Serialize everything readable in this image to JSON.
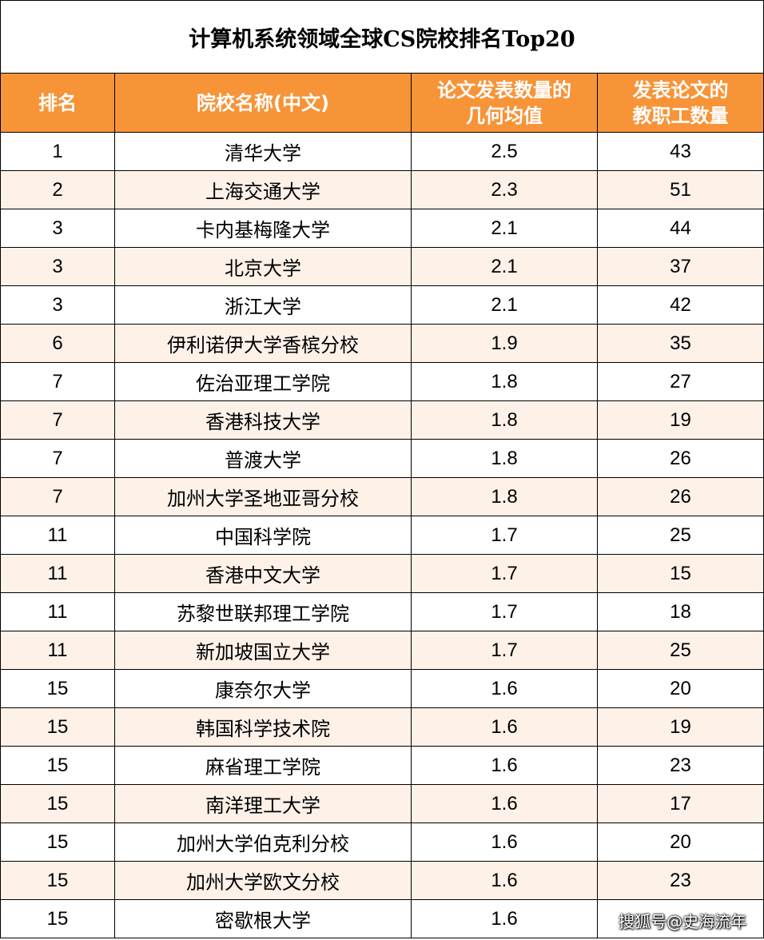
{
  "title": "计算机系统领域全球CS院校排名Top20",
  "headers": [
    "排名",
    "院校名称(中文)",
    "论文发表数量的\n几何均值",
    "发表论文的\n教职工数量"
  ],
  "rows": [
    {
      "rank": "1",
      "name": "清华大学",
      "mean": "2.5",
      "faculty": "43"
    },
    {
      "rank": "2",
      "name": "上海交通大学",
      "mean": "2.3",
      "faculty": "51"
    },
    {
      "rank": "3",
      "name": "卡内基梅隆大学",
      "mean": "2.1",
      "faculty": "44"
    },
    {
      "rank": "3",
      "name": "北京大学",
      "mean": "2.1",
      "faculty": "37"
    },
    {
      "rank": "3",
      "name": "浙江大学",
      "mean": "2.1",
      "faculty": "42"
    },
    {
      "rank": "6",
      "name": "伊利诺伊大学香槟分校",
      "mean": "1.9",
      "faculty": "35"
    },
    {
      "rank": "7",
      "name": "佐治亚理工学院",
      "mean": "1.8",
      "faculty": "27"
    },
    {
      "rank": "7",
      "name": "香港科技大学",
      "mean": "1.8",
      "faculty": "19"
    },
    {
      "rank": "7",
      "name": "普渡大学",
      "mean": "1.8",
      "faculty": "26"
    },
    {
      "rank": "7",
      "name": "加州大学圣地亚哥分校",
      "mean": "1.8",
      "faculty": "26"
    },
    {
      "rank": "11",
      "name": "中国科学院",
      "mean": "1.7",
      "faculty": "25"
    },
    {
      "rank": "11",
      "name": "香港中文大学",
      "mean": "1.7",
      "faculty": "15"
    },
    {
      "rank": "11",
      "name": "苏黎世联邦理工学院",
      "mean": "1.7",
      "faculty": "18"
    },
    {
      "rank": "11",
      "name": "新加坡国立大学",
      "mean": "1.7",
      "faculty": "25"
    },
    {
      "rank": "15",
      "name": "康奈尔大学",
      "mean": "1.6",
      "faculty": "20"
    },
    {
      "rank": "15",
      "name": "韩国科学技术院",
      "mean": "1.6",
      "faculty": "19"
    },
    {
      "rank": "15",
      "name": "麻省理工学院",
      "mean": "1.6",
      "faculty": "23"
    },
    {
      "rank": "15",
      "name": "南洋理工大学",
      "mean": "1.6",
      "faculty": "17"
    },
    {
      "rank": "15",
      "name": "加州大学伯克利分校",
      "mean": "1.6",
      "faculty": "20"
    },
    {
      "rank": "15",
      "name": "加州大学欧文分校",
      "mean": "1.6",
      "faculty": "23"
    },
    {
      "rank": "15",
      "name": "密歇根大学",
      "mean": "1.6",
      "faculty": ""
    }
  ],
  "watermark": "搜狐号@史海流年"
}
